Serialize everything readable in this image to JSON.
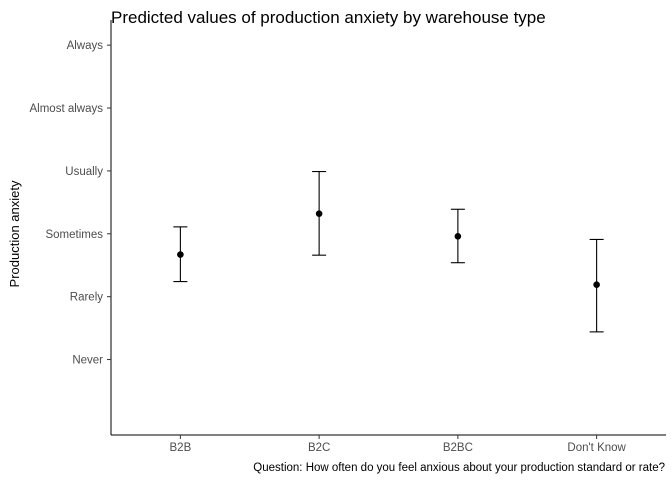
{
  "chart_data": {
    "type": "errorbar",
    "title": "Predicted values of production anxiety by warehouse type",
    "ylabel": "Production anxiety",
    "caption": "Question: How often do you feel anxious about your production standard or rate?",
    "categories": [
      "B2B",
      "B2C",
      "B2BC",
      "Don't Know"
    ],
    "y_tick_labels": [
      "Never",
      "Rarely",
      "Sometimes",
      "Usually",
      "Almost always",
      "Always"
    ],
    "y_tick_values": [
      1,
      2,
      3,
      4,
      5,
      6
    ],
    "ylim": [
      -0.2,
      6.4
    ],
    "estimates": [
      2.67,
      3.32,
      2.96,
      2.19
    ],
    "lower": [
      2.24,
      2.66,
      2.54,
      1.44
    ],
    "upper": [
      3.11,
      3.99,
      3.39,
      2.91
    ],
    "grid": false,
    "legend": "none"
  }
}
